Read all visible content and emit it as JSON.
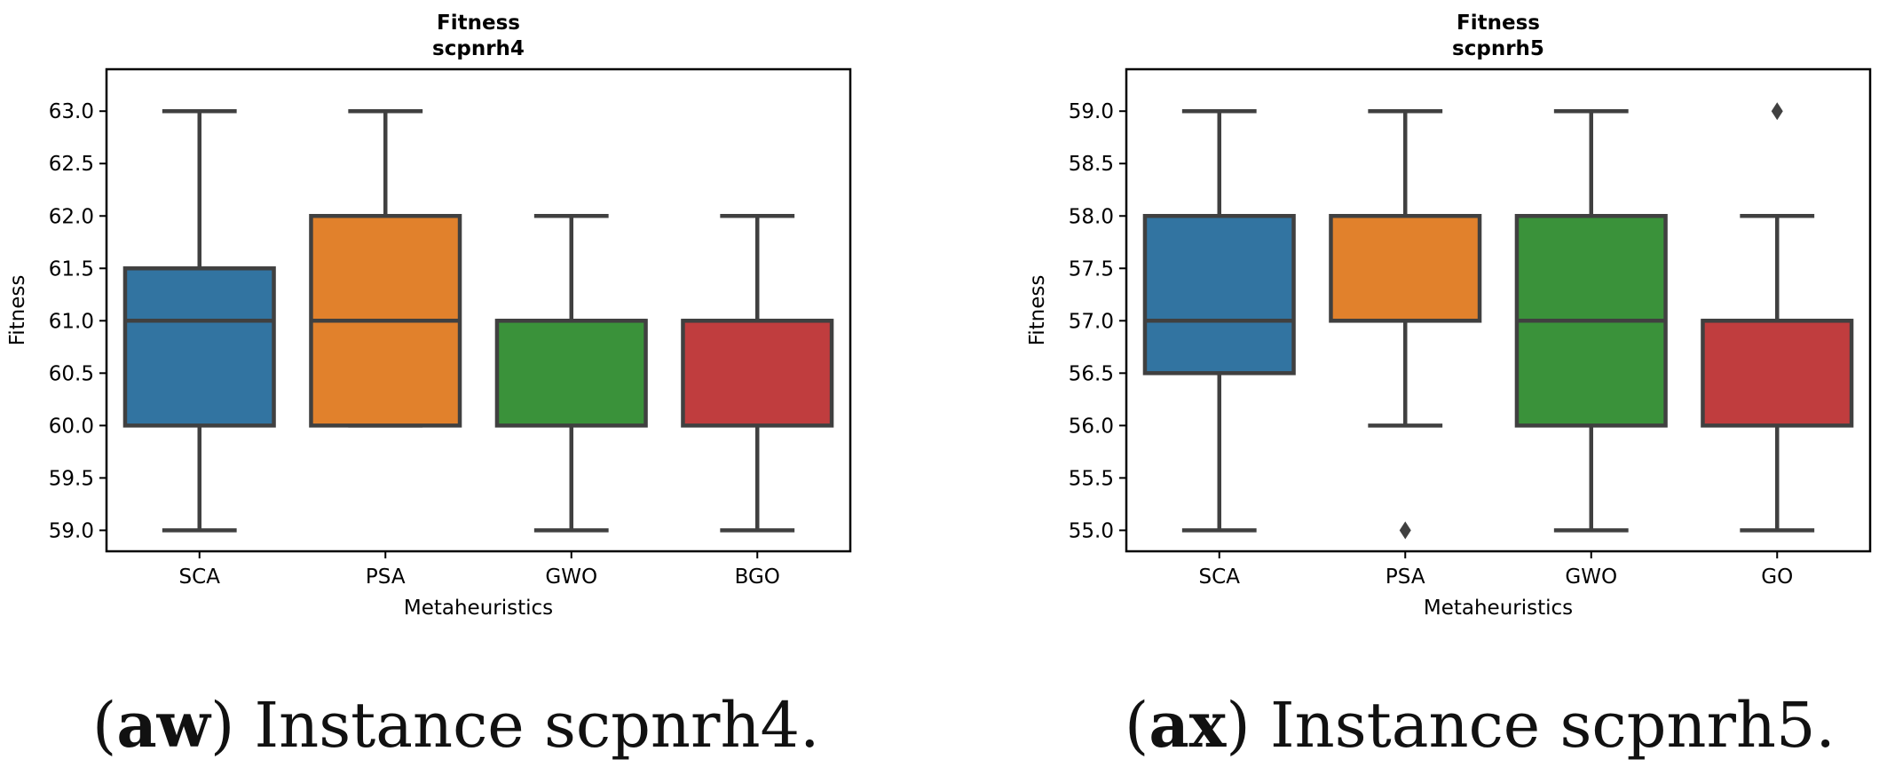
{
  "chart_data": [
    {
      "type": "box",
      "title": "Fitness",
      "subtitle": "scpnrh4",
      "xlabel": "Metaheuristics",
      "ylabel": "Fitness",
      "ylim": [
        58.8,
        63.4
      ],
      "yticks": [
        59.0,
        59.5,
        60.0,
        60.5,
        61.0,
        61.5,
        62.0,
        62.5,
        63.0
      ],
      "grid": false,
      "categories": [
        "SCA",
        "PSA",
        "GWO",
        "BGO"
      ],
      "boxes": [
        {
          "label": "SCA",
          "whisker_low": 59.0,
          "q1": 60.0,
          "median": 61.0,
          "q3": 61.5,
          "whisker_high": 63.0,
          "outliers": [],
          "color": "#3274a1"
        },
        {
          "label": "PSA",
          "whisker_low": 60.0,
          "q1": 60.0,
          "median": 61.0,
          "q3": 62.0,
          "whisker_high": 63.0,
          "outliers": [],
          "color": "#e1812c"
        },
        {
          "label": "GWO",
          "whisker_low": 59.0,
          "q1": 60.0,
          "median": 61.0,
          "q3": 61.0,
          "whisker_high": 62.0,
          "outliers": [],
          "color": "#3a923a"
        },
        {
          "label": "BGO",
          "whisker_low": 59.0,
          "q1": 60.0,
          "median": 61.0,
          "q3": 61.0,
          "whisker_high": 62.0,
          "outliers": [],
          "color": "#c03d3e"
        }
      ]
    },
    {
      "type": "box",
      "title": "Fitness",
      "subtitle": "scpnrh5",
      "xlabel": "Metaheuristics",
      "ylabel": "Fitness",
      "ylim": [
        54.8,
        59.4
      ],
      "yticks": [
        55.0,
        55.5,
        56.0,
        56.5,
        57.0,
        57.5,
        58.0,
        58.5,
        59.0
      ],
      "grid": false,
      "categories": [
        "SCA",
        "PSA",
        "GWO",
        "GO"
      ],
      "boxes": [
        {
          "label": "SCA",
          "whisker_low": 55.0,
          "q1": 56.5,
          "median": 57.0,
          "q3": 58.0,
          "whisker_high": 59.0,
          "outliers": [],
          "color": "#3274a1"
        },
        {
          "label": "PSA",
          "whisker_low": 56.0,
          "q1": 57.0,
          "median": 57.0,
          "q3": 58.0,
          "whisker_high": 59.0,
          "outliers": [
            55.0
          ],
          "color": "#e1812c"
        },
        {
          "label": "GWO",
          "whisker_low": 55.0,
          "q1": 56.0,
          "median": 57.0,
          "q3": 58.0,
          "whisker_high": 59.0,
          "outliers": [],
          "color": "#3a923a"
        },
        {
          "label": "GO",
          "whisker_low": 55.0,
          "q1": 56.0,
          "median": 57.0,
          "q3": 57.0,
          "whisker_high": 58.0,
          "outliers": [
            59.0
          ],
          "color": "#c03d3e"
        }
      ]
    }
  ],
  "captions": [
    {
      "open": "(",
      "tag": "aw",
      "close": ")",
      "text": " Instance scpnrh4."
    },
    {
      "open": "(",
      "tag": "ax",
      "close": ")",
      "text": " Instance scpnrh5."
    }
  ]
}
